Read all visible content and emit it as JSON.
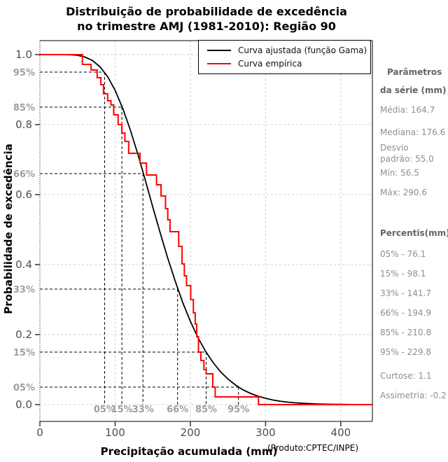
{
  "title": {
    "line1": "Distribuição de probabilidade de excedência",
    "line2": "no trimestre AMJ (1981-2010): Região 90"
  },
  "legend": {
    "items": [
      {
        "label": "Curva ajustada (função Gama)",
        "color": "#000000"
      },
      {
        "label": "Curva empírica",
        "color": "#ff0000"
      }
    ]
  },
  "axes": {
    "x_label": "Precipitação acumulada (mm)",
    "y_label": "Probabilidade de excedência",
    "source_note": "(Produto:CPTEC/INPE)",
    "x_ticks": [
      0,
      100,
      200,
      300,
      400
    ],
    "y_ticks": [
      "0.0",
      "0.2",
      "0.4",
      "0.6",
      "0.8",
      "1.0"
    ]
  },
  "sidebar": {
    "params_header_line1": "Parâmetros",
    "params_header_line2": "da série (mm)",
    "stats": [
      "Média: 164.7",
      "Mediana: 176.6",
      "Desvio padrão: 55.0",
      "Mín: 56.5",
      "Máx: 290.6"
    ],
    "percentiles_header": "Percentis(mm)",
    "percentiles": [
      "05% - 76.1",
      "15% - 98.1",
      "33% - 141.7",
      "66% - 194.9",
      "85% - 210.8",
      "95% - 229.8"
    ],
    "kurtosis": "Curtose: 1.1",
    "skewness": "Assimetria: -0.2"
  },
  "chart_data": {
    "type": "line",
    "title": "Distribuição de probabilidade de excedência no trimestre AMJ (1981-2010): Região 90",
    "xlabel": "Precipitação acumulada (mm)",
    "ylabel": "Probabilidade de excedência",
    "xlim": [
      0,
      442
    ],
    "ylim": [
      0,
      1
    ],
    "grid": true,
    "legend_position": "top-right",
    "colors": {
      "fitted": "#000000",
      "empirical": "#ff0000",
      "grid": "#cfcfcf",
      "guide": "#000000",
      "tick_label": "#4d4d4d",
      "pct_label": "#9e9e9e"
    },
    "series": [
      {
        "name": "Curva ajustada (função Gama)",
        "style": "smooth",
        "color": "#000000",
        "x": [
          0,
          10,
          20,
          30,
          40,
          50,
          60,
          70,
          80,
          90,
          100,
          110,
          120,
          130,
          140,
          150,
          160,
          170,
          180,
          190,
          200,
          210,
          220,
          230,
          240,
          250,
          260,
          270,
          280,
          290,
          300,
          310,
          320,
          330,
          340,
          350,
          360,
          370,
          380,
          390,
          400,
          420,
          442
        ],
        "y": [
          1.0,
          1.0,
          1.0,
          0.9999,
          0.9995,
          0.998,
          0.993,
          0.983,
          0.965,
          0.937,
          0.898,
          0.847,
          0.786,
          0.717,
          0.642,
          0.565,
          0.49,
          0.418,
          0.352,
          0.291,
          0.238,
          0.192,
          0.153,
          0.121,
          0.094,
          0.073,
          0.056,
          0.042,
          0.032,
          0.024,
          0.018,
          0.013,
          0.0095,
          0.007,
          0.005,
          0.0036,
          0.0026,
          0.0018,
          0.0013,
          0.0009,
          0.0006,
          0.0003,
          0.0002
        ]
      },
      {
        "name": "Curva empírica",
        "style": "step",
        "color": "#ff0000",
        "start": [
          0,
          1.0
        ],
        "drops": [
          [
            56.5,
            0.972
          ],
          [
            68,
            0.956
          ],
          [
            76.1,
            0.934
          ],
          [
            81,
            0.914
          ],
          [
            84.5,
            0.888
          ],
          [
            90,
            0.868
          ],
          [
            94.5,
            0.856
          ],
          [
            98.1,
            0.828
          ],
          [
            104,
            0.8
          ],
          [
            109,
            0.776
          ],
          [
            113,
            0.752
          ],
          [
            118,
            0.718
          ],
          [
            133,
            0.69
          ],
          [
            141.7,
            0.656
          ],
          [
            155,
            0.628
          ],
          [
            161,
            0.596
          ],
          [
            167,
            0.56
          ],
          [
            170,
            0.528
          ],
          [
            173,
            0.494
          ],
          [
            184.5,
            0.452
          ],
          [
            189,
            0.402
          ],
          [
            192,
            0.368
          ],
          [
            194.9,
            0.34
          ],
          [
            200.5,
            0.3
          ],
          [
            204,
            0.262
          ],
          [
            206.5,
            0.23
          ],
          [
            208.5,
            0.194
          ],
          [
            210.8,
            0.15
          ],
          [
            214,
            0.126
          ],
          [
            218,
            0.1
          ],
          [
            221,
            0.088
          ],
          [
            229.8,
            0.05
          ],
          [
            233,
            0.022
          ],
          [
            290.6,
            0.0
          ]
        ]
      }
    ],
    "percentile_guides": [
      {
        "x_axis_label": "05%",
        "y_axis_label": "95%",
        "level": 0.95,
        "x": 86
      },
      {
        "x_axis_label": "15%",
        "y_axis_label": "85%",
        "level": 0.85,
        "x": 109
      },
      {
        "x_axis_label": "33%",
        "y_axis_label": "66%",
        "level": 0.66,
        "x": 137
      },
      {
        "x_axis_label": "66%",
        "y_axis_label": "33%",
        "level": 0.33,
        "x": 183
      },
      {
        "x_axis_label": "85%",
        "y_axis_label": "15%",
        "level": 0.15,
        "x": 221
      },
      {
        "x_axis_label": "95%",
        "y_axis_label": "05%",
        "level": 0.05,
        "x": 264
      }
    ]
  }
}
